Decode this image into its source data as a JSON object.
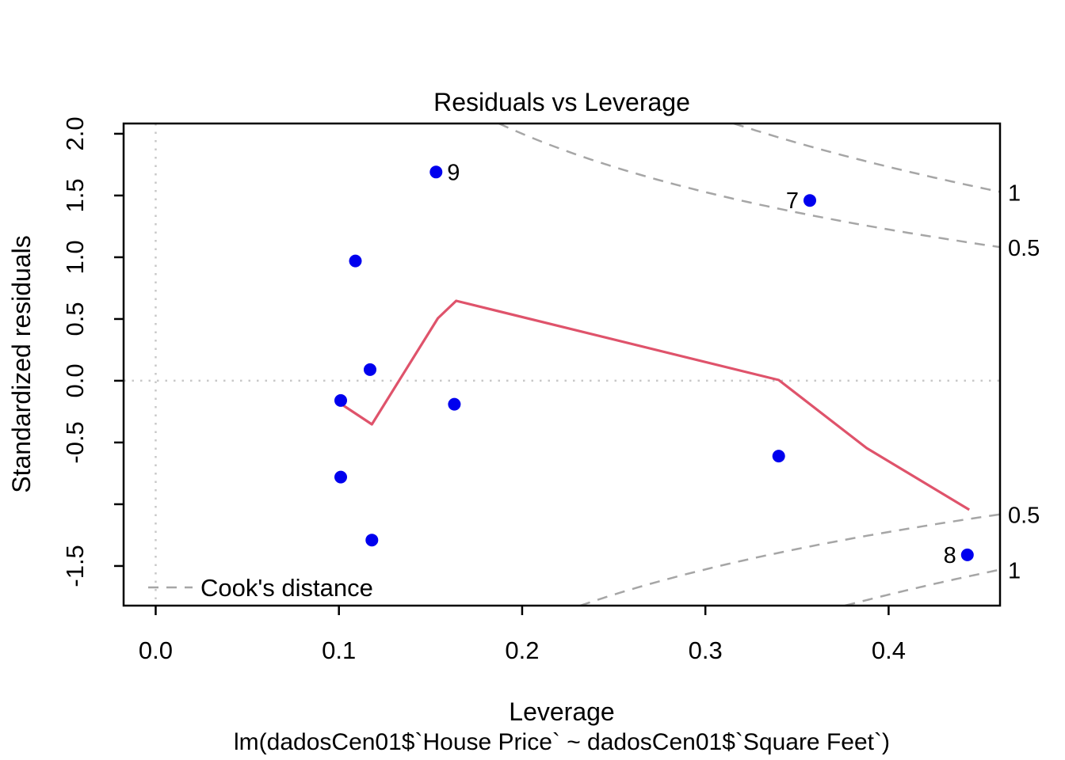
{
  "chart_data": {
    "type": "scatter",
    "title": "Residuals vs Leverage",
    "xlabel": "Leverage",
    "ylabel": "Standardized residuals",
    "sub_caption": "lm(dadosCen01$`House Price` ~ dadosCen01$`Square Feet`)",
    "xlim": [
      -0.0175,
      0.4608
    ],
    "ylim": [
      -1.821,
      2.083
    ],
    "grid": "off",
    "legend_position": "bottom-left-inside",
    "x_ticks": [
      {
        "v": 0.0,
        "label": "0.0"
      },
      {
        "v": 0.1,
        "label": "0.1"
      },
      {
        "v": 0.2,
        "label": "0.2"
      },
      {
        "v": 0.3,
        "label": "0.3"
      },
      {
        "v": 0.4,
        "label": "0.4"
      }
    ],
    "y_ticks": [
      {
        "v": 2.0,
        "label": "2.0"
      },
      {
        "v": 1.5,
        "label": "1.5"
      },
      {
        "v": 1.0,
        "label": "1.0"
      },
      {
        "v": 0.5,
        "label": "0.5"
      },
      {
        "v": 0.0,
        "label": "0.0"
      },
      {
        "v": -0.5,
        "label": "-0.5"
      },
      {
        "v": -1.0,
        "label": ""
      },
      {
        "v": -1.5,
        "label": "-1.5"
      }
    ],
    "points": [
      {
        "x": 0.101,
        "y": -0.16,
        "label": ""
      },
      {
        "x": 0.101,
        "y": -0.78,
        "label": ""
      },
      {
        "x": 0.109,
        "y": 0.97,
        "label": ""
      },
      {
        "x": 0.117,
        "y": 0.09,
        "label": ""
      },
      {
        "x": 0.118,
        "y": -1.29,
        "label": ""
      },
      {
        "x": 0.153,
        "y": 1.69,
        "label": "9",
        "label_side": "right"
      },
      {
        "x": 0.163,
        "y": -0.19,
        "label": ""
      },
      {
        "x": 0.34,
        "y": -0.61,
        "label": ""
      },
      {
        "x": 0.357,
        "y": 1.46,
        "label": "7",
        "label_side": "left"
      },
      {
        "x": 0.443,
        "y": -1.41,
        "label": "8",
        "label_side": "left"
      }
    ],
    "smooth_line": [
      [
        0.101,
        -0.186
      ],
      [
        0.118,
        -0.353
      ],
      [
        0.154,
        0.506
      ],
      [
        0.164,
        0.647
      ],
      [
        0.34,
        0.006
      ],
      [
        0.388,
        -0.545
      ],
      [
        0.444,
        -1.045
      ]
    ],
    "cook_contours": {
      "levels": [
        0.5,
        1
      ],
      "labels": [
        "0.5",
        "1"
      ],
      "model_params_p": 2
    },
    "ref_lines": {
      "h": 0,
      "v": 0
    },
    "legend": "Cook's distance",
    "colors": {
      "point": "#0000ee",
      "smooth": "#df536b",
      "contour": "#a6a6a6",
      "ref": "#c8c8c8",
      "gray_text": "#969696",
      "frame": "#000000"
    }
  }
}
